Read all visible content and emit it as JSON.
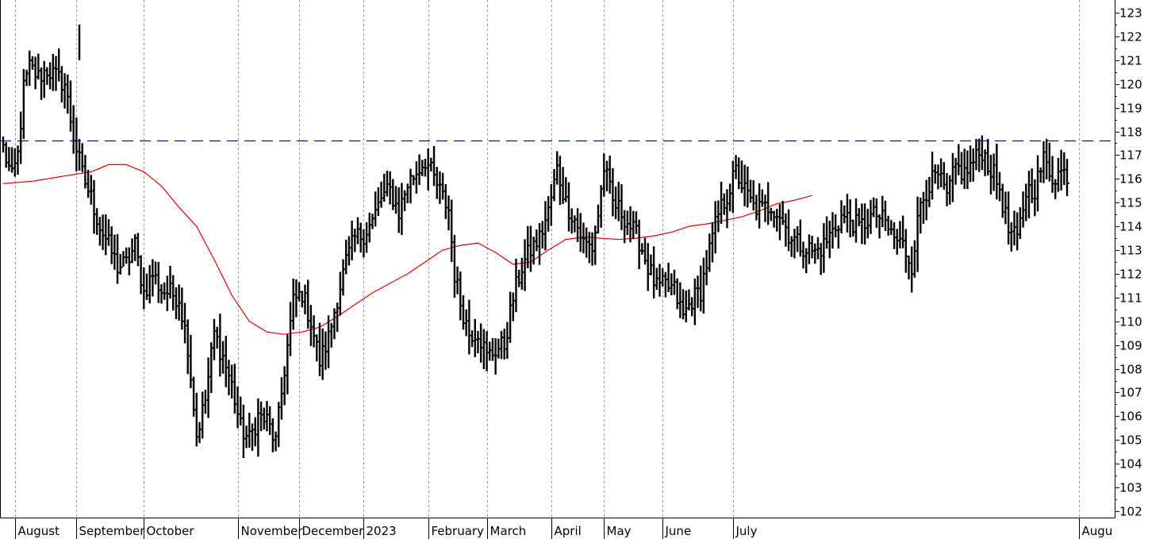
{
  "chart_data": {
    "type": "ohlc",
    "title": "",
    "xlabel": "",
    "ylabel": "",
    "ylim": [
      101.7,
      123.3
    ],
    "y_ticks": [
      102,
      103,
      104,
      105,
      106,
      107,
      108,
      109,
      110,
      111,
      112,
      113,
      114,
      115,
      116,
      117,
      118,
      119,
      120,
      121,
      122,
      123
    ],
    "x_months": [
      "August",
      "September",
      "October",
      "November",
      "December",
      "2023",
      "February",
      "March",
      "April",
      "May",
      "June",
      "July",
      "Augu"
    ],
    "grid": "vertical dashed at month starts",
    "bar_color": "#000000",
    "resistance_line": {
      "value": 117.6,
      "style": "dashed",
      "color": "#0000cc"
    },
    "moving_average_color": "#dd0000",
    "price_anchors": [
      [
        0,
        117.3
      ],
      [
        3,
        116.0
      ],
      [
        5,
        117.0
      ],
      [
        7,
        119.8
      ],
      [
        9,
        120.7
      ],
      [
        12,
        120.3
      ],
      [
        15,
        120.6
      ],
      [
        18,
        120.3
      ],
      [
        21,
        120.0
      ],
      [
        24,
        117.8
      ],
      [
        27,
        116.2
      ],
      [
        30,
        115.2
      ],
      [
        33,
        114.0
      ],
      [
        36,
        113.2
      ],
      [
        39,
        112.3
      ],
      [
        42,
        112.4
      ],
      [
        45,
        113.2
      ],
      [
        48,
        111.2
      ],
      [
        51,
        112.0
      ],
      [
        54,
        111.3
      ],
      [
        57,
        111.2
      ],
      [
        60,
        111.0
      ],
      [
        63,
        109.0
      ],
      [
        66,
        105.2
      ],
      [
        69,
        106.7
      ],
      [
        72,
        109.5
      ],
      [
        75,
        108.5
      ],
      [
        78,
        107.3
      ],
      [
        81,
        105.5
      ],
      [
        84,
        105.0
      ],
      [
        87,
        106.0
      ],
      [
        90,
        105.8
      ],
      [
        93,
        104.9
      ],
      [
        96,
        108.0
      ],
      [
        99,
        110.8
      ],
      [
        102,
        111.2
      ],
      [
        105,
        110.0
      ],
      [
        108,
        108.3
      ],
      [
        111,
        109.3
      ],
      [
        114,
        111.0
      ],
      [
        117,
        112.5
      ],
      [
        120,
        113.5
      ],
      [
        123,
        113.7
      ],
      [
        126,
        114.2
      ],
      [
        129,
        115.2
      ],
      [
        132,
        115.5
      ],
      [
        135,
        114.6
      ],
      [
        138,
        115.8
      ],
      [
        141,
        116.3
      ],
      [
        144,
        116.8
      ],
      [
        147,
        116.0
      ],
      [
        150,
        115.2
      ],
      [
        152,
        114.7
      ],
      [
        154,
        112.0
      ],
      [
        156,
        110.8
      ],
      [
        159,
        109.5
      ],
      [
        162,
        109.6
      ],
      [
        165,
        108.5
      ],
      [
        168,
        108.8
      ],
      [
        171,
        109.0
      ],
      [
        174,
        111.0
      ],
      [
        177,
        112.3
      ],
      [
        180,
        113.0
      ],
      [
        183,
        113.5
      ],
      [
        186,
        114.6
      ],
      [
        189,
        116.4
      ],
      [
        192,
        115.0
      ],
      [
        195,
        114.3
      ],
      [
        198,
        113.3
      ],
      [
        201,
        113.1
      ],
      [
        203,
        114.5
      ],
      [
        205,
        116.5
      ],
      [
        208,
        115.0
      ],
      [
        211,
        114.6
      ],
      [
        214,
        114.0
      ],
      [
        217,
        113.4
      ],
      [
        220,
        112.3
      ],
      [
        223,
        111.4
      ],
      [
        226,
        111.5
      ],
      [
        229,
        111.3
      ],
      [
        232,
        110.2
      ],
      [
        235,
        110.9
      ],
      [
        238,
        111.3
      ],
      [
        241,
        113.0
      ],
      [
        244,
        114.5
      ],
      [
        247,
        115.3
      ],
      [
        250,
        116.3
      ],
      [
        253,
        115.5
      ],
      [
        256,
        114.8
      ],
      [
        259,
        114.7
      ],
      [
        262,
        114.9
      ],
      [
        265,
        114.5
      ],
      [
        268,
        113.7
      ],
      [
        271,
        113.3
      ],
      [
        274,
        113.1
      ],
      [
        277,
        112.9
      ],
      [
        280,
        113.2
      ],
      [
        283,
        113.8
      ],
      [
        286,
        114.4
      ],
      [
        289,
        114.3
      ],
      [
        292,
        113.9
      ],
      [
        295,
        114.3
      ],
      [
        298,
        114.5
      ],
      [
        301,
        114.1
      ],
      [
        304,
        113.5
      ],
      [
        307,
        113.2
      ],
      [
        310,
        112.4
      ],
      [
        313,
        115.0
      ],
      [
        316,
        115.8
      ],
      [
        319,
        116.1
      ],
      [
        322,
        115.2
      ],
      [
        325,
        116.5
      ],
      [
        328,
        116.2
      ],
      [
        331,
        116.7
      ],
      [
        334,
        117.2
      ],
      [
        337,
        116.4
      ],
      [
        340,
        115.6
      ],
      [
        343,
        113.8
      ],
      [
        346,
        113.4
      ],
      [
        349,
        115.5
      ],
      [
        352,
        115.6
      ],
      [
        355,
        116.8
      ],
      [
        358,
        116.1
      ],
      [
        361,
        116.3
      ],
      [
        363,
        116.2
      ]
    ],
    "moving_average": [
      [
        0,
        115.8
      ],
      [
        10,
        115.9
      ],
      [
        20,
        116.1
      ],
      [
        30,
        116.3
      ],
      [
        36,
        116.6
      ],
      [
        42,
        116.6
      ],
      [
        48,
        116.3
      ],
      [
        54,
        115.7
      ],
      [
        60,
        114.8
      ],
      [
        66,
        114.0
      ],
      [
        72,
        112.6
      ],
      [
        78,
        111.1
      ],
      [
        84,
        110.0
      ],
      [
        90,
        109.55
      ],
      [
        96,
        109.45
      ],
      [
        102,
        109.55
      ],
      [
        108,
        109.75
      ],
      [
        114,
        110.2
      ],
      [
        120,
        110.7
      ],
      [
        126,
        111.2
      ],
      [
        132,
        111.6
      ],
      [
        138,
        112.0
      ],
      [
        144,
        112.5
      ],
      [
        150,
        113.0
      ],
      [
        156,
        113.2
      ],
      [
        162,
        113.3
      ],
      [
        168,
        112.9
      ],
      [
        174,
        112.4
      ],
      [
        180,
        112.5
      ],
      [
        186,
        113.0
      ],
      [
        192,
        113.45
      ],
      [
        198,
        113.55
      ],
      [
        204,
        113.5
      ],
      [
        210,
        113.45
      ],
      [
        216,
        113.5
      ],
      [
        222,
        113.6
      ],
      [
        228,
        113.75
      ],
      [
        234,
        114.0
      ],
      [
        240,
        114.1
      ],
      [
        246,
        114.25
      ],
      [
        252,
        114.4
      ],
      [
        258,
        114.65
      ],
      [
        264,
        114.95
      ],
      [
        270,
        115.1
      ],
      [
        276,
        115.3
      ]
    ]
  }
}
